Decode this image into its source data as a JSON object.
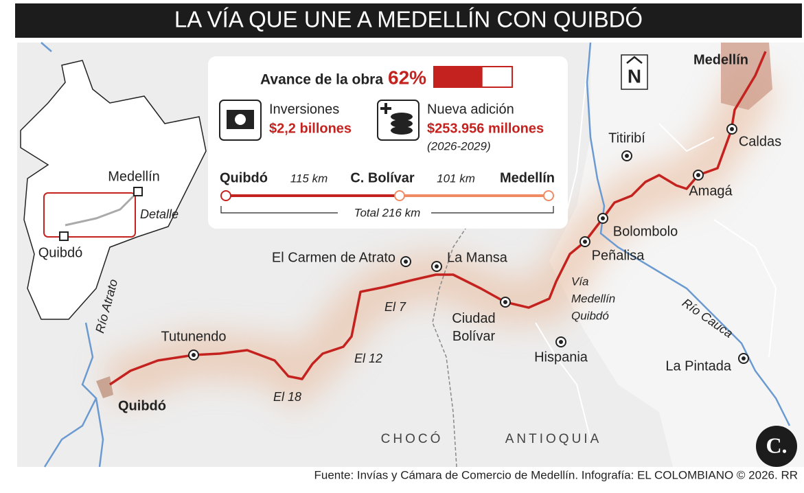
{
  "header": {
    "title": "LA VÍA QUE UNE A MEDELLÍN CON QUIBDÓ"
  },
  "panel": {
    "progress": {
      "label": "Avance de la obra",
      "value": 62,
      "value_label": "62%"
    },
    "investment": {
      "label": "Inversiones",
      "amount": "$2,2 billones"
    },
    "addition": {
      "label": "Nueva adición",
      "amount": "$253.956 millones",
      "period": "(2026-2029)"
    },
    "route": {
      "stops": [
        "Quibdó",
        "C. Bolívar",
        "Medellín"
      ],
      "distances": [
        "115 km",
        "101 km"
      ],
      "total": "Total 216 km"
    }
  },
  "inset": {
    "labels": [
      "Medellín",
      "Detalle",
      "Quibdó"
    ]
  },
  "map": {
    "places": [
      "Medellín",
      "Caldas",
      "Titiribí",
      "Amagá",
      "Bolombolo",
      "Peñalisa",
      "La Mansa",
      "El Carmen de Atrato",
      "Ciudad Bolívar",
      "Hispania",
      "La Pintada",
      "Tutunendo",
      "Quibdó"
    ],
    "road": [
      "Vía",
      "Medellín",
      "Quibdó"
    ],
    "rivers": [
      "Río Atrato",
      "Río Cauca"
    ],
    "kilometer_points": [
      "El 7",
      "El 12",
      "El 18"
    ],
    "regions": [
      "CHOCÓ",
      "ANTIOQUIA"
    ],
    "north": "N"
  },
  "logo": "C.",
  "footer": "Fuente: Invías y Cámara de Comercio de Medellín. Infografía: EL COLOMBIANO © 2026. RR"
}
